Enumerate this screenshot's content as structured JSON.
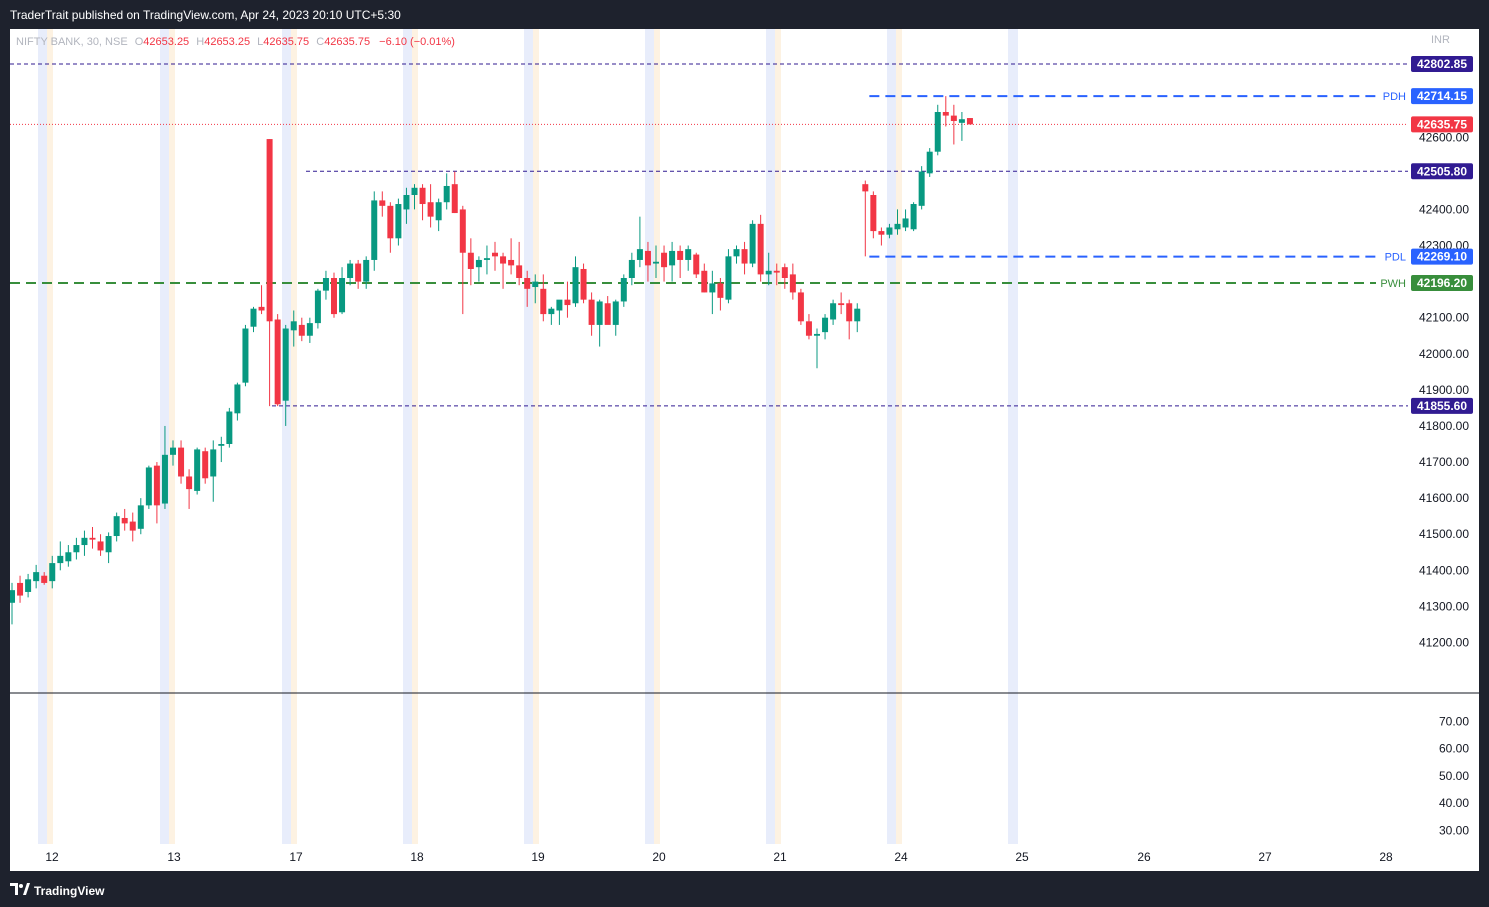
{
  "header": {
    "published_by": "TraderTrait published on TradingView.com, Apr 24, 2023 20:10 UTC+5:30"
  },
  "legend": {
    "symbol": "NIFTY BANK, 30, NSE",
    "o_label": "O",
    "o_value": "42653.25",
    "h_label": "H",
    "h_value": "42653.25",
    "l_label": "L",
    "l_value": "42635.75",
    "c_label": "C",
    "c_value": "42635.75",
    "change": "−6.10 (−0.01%)"
  },
  "footer": {
    "brand": "TradingView"
  },
  "colors": {
    "up": "#089981",
    "down": "#f23645",
    "background": "#ffffff",
    "pdh": "#2962ff",
    "pdl": "#2962ff",
    "pwh": "#388e3c",
    "level_label": "#311b92",
    "last_price": "#f23645",
    "session_blue": "#e8edfb",
    "session_orange": "#fdf2e2"
  },
  "chart_data": {
    "type": "candlestick",
    "currency": "INR",
    "price_axis": {
      "range": [
        41060,
        42900
      ],
      "ticks": [
        "42600.00",
        "42500.00",
        "42400.00",
        "42300.00",
        "42200.00",
        "42100.00",
        "42000.00",
        "41900.00",
        "41800.00",
        "41700.00",
        "41600.00",
        "41500.00",
        "41400.00",
        "41300.00",
        "41200.00"
      ]
    },
    "indicator_axis": {
      "range": [
        25,
        80
      ],
      "ticks": [
        "70.00",
        "60.00",
        "50.00",
        "40.00",
        "30.00"
      ]
    },
    "x_axis": {
      "labels": [
        "12",
        "13",
        "17",
        "18",
        "19",
        "20",
        "21",
        "24",
        "25",
        "26",
        "27",
        "28"
      ]
    },
    "levels": [
      {
        "name": "",
        "value": "42802.85",
        "style": "dashed-thin",
        "color": "#311b92"
      },
      {
        "name": "PDH",
        "value": "42714.15",
        "style": "dashed",
        "color": "#2962ff"
      },
      {
        "name": "",
        "value": "42505.80",
        "style": "dashed-thin",
        "color": "#311b92"
      },
      {
        "name": "PDL",
        "value": "42269.10",
        "style": "dashed",
        "color": "#2962ff"
      },
      {
        "name": "PWH",
        "value": "42196.20",
        "style": "dashed",
        "color": "#388e3c"
      },
      {
        "name": "",
        "value": "41855.60",
        "style": "dashed-thin",
        "color": "#311b92"
      }
    ],
    "last_price": "42635.75",
    "candles": [
      {
        "o": 41310,
        "h": 41365,
        "l": 41250,
        "c": 41345
      },
      {
        "o": 41365,
        "h": 41385,
        "l": 41310,
        "c": 41330
      },
      {
        "o": 41340,
        "h": 41390,
        "l": 41325,
        "c": 41375
      },
      {
        "o": 41370,
        "h": 41415,
        "l": 41350,
        "c": 41395
      },
      {
        "o": 41385,
        "h": 41395,
        "l": 41360,
        "c": 41365
      },
      {
        "o": 41370,
        "h": 41440,
        "l": 41350,
        "c": 41420
      },
      {
        "o": 41420,
        "h": 41480,
        "l": 41400,
        "c": 41440
      },
      {
        "o": 41425,
        "h": 41470,
        "l": 41410,
        "c": 41450
      },
      {
        "o": 41450,
        "h": 41490,
        "l": 41430,
        "c": 41470
      },
      {
        "o": 41470,
        "h": 41510,
        "l": 41440,
        "c": 41490
      },
      {
        "o": 41490,
        "h": 41520,
        "l": 41460,
        "c": 41485
      },
      {
        "o": 41480,
        "h": 41500,
        "l": 41440,
        "c": 41455
      },
      {
        "o": 41450,
        "h": 41505,
        "l": 41420,
        "c": 41495
      },
      {
        "o": 41495,
        "h": 41560,
        "l": 41480,
        "c": 41550
      },
      {
        "o": 41545,
        "h": 41570,
        "l": 41510,
        "c": 41530
      },
      {
        "o": 41535,
        "h": 41560,
        "l": 41480,
        "c": 41510
      },
      {
        "o": 41515,
        "h": 41600,
        "l": 41500,
        "c": 41580
      },
      {
        "o": 41580,
        "h": 41690,
        "l": 41570,
        "c": 41685
      },
      {
        "o": 41690,
        "h": 41700,
        "l": 41530,
        "c": 41580
      },
      {
        "o": 41585,
        "h": 41800,
        "l": 41570,
        "c": 41720
      },
      {
        "o": 41720,
        "h": 41760,
        "l": 41690,
        "c": 41740
      },
      {
        "o": 41740,
        "h": 41760,
        "l": 41640,
        "c": 41660
      },
      {
        "o": 41660,
        "h": 41680,
        "l": 41570,
        "c": 41625
      },
      {
        "o": 41620,
        "h": 41740,
        "l": 41610,
        "c": 41735
      },
      {
        "o": 41730,
        "h": 41740,
        "l": 41640,
        "c": 41655
      },
      {
        "o": 41660,
        "h": 41760,
        "l": 41590,
        "c": 41735
      },
      {
        "o": 41745,
        "h": 41770,
        "l": 41700,
        "c": 41750
      },
      {
        "o": 41750,
        "h": 41850,
        "l": 41740,
        "c": 41840
      },
      {
        "o": 41835,
        "h": 41920,
        "l": 41815,
        "c": 41915
      },
      {
        "o": 41920,
        "h": 42080,
        "l": 41910,
        "c": 42070
      },
      {
        "o": 42075,
        "h": 42130,
        "l": 42060,
        "c": 42125
      },
      {
        "o": 42130,
        "h": 42190,
        "l": 42110,
        "c": 42120
      },
      {
        "o": 42595,
        "h": 42595,
        "l": 41855,
        "c": 42090
      },
      {
        "o": 42095,
        "h": 42110,
        "l": 41855,
        "c": 41860
      },
      {
        "o": 41870,
        "h": 42080,
        "l": 41800,
        "c": 42070
      },
      {
        "o": 42065,
        "h": 42120,
        "l": 42020,
        "c": 42090
      },
      {
        "o": 42080,
        "h": 42100,
        "l": 42035,
        "c": 42050
      },
      {
        "o": 42050,
        "h": 42100,
        "l": 42030,
        "c": 42085
      },
      {
        "o": 42085,
        "h": 42180,
        "l": 42070,
        "c": 42175
      },
      {
        "o": 42175,
        "h": 42230,
        "l": 42150,
        "c": 42210
      },
      {
        "o": 42210,
        "h": 42225,
        "l": 42100,
        "c": 42110
      },
      {
        "o": 42115,
        "h": 42240,
        "l": 42110,
        "c": 42210
      },
      {
        "o": 42210,
        "h": 42260,
        "l": 42190,
        "c": 42250
      },
      {
        "o": 42250,
        "h": 42260,
        "l": 42180,
        "c": 42200
      },
      {
        "o": 42200,
        "h": 42270,
        "l": 42180,
        "c": 42260
      },
      {
        "o": 42260,
        "h": 42450,
        "l": 42230,
        "c": 42425
      },
      {
        "o": 42425,
        "h": 42450,
        "l": 42380,
        "c": 42410
      },
      {
        "o": 42410,
        "h": 42420,
        "l": 42280,
        "c": 42320
      },
      {
        "o": 42320,
        "h": 42430,
        "l": 42300,
        "c": 42415
      },
      {
        "o": 42400,
        "h": 42460,
        "l": 42360,
        "c": 42440
      },
      {
        "o": 42440,
        "h": 42470,
        "l": 42400,
        "c": 42460
      },
      {
        "o": 42460,
        "h": 42470,
        "l": 42370,
        "c": 42415
      },
      {
        "o": 42420,
        "h": 42470,
        "l": 42350,
        "c": 42380
      },
      {
        "o": 42370,
        "h": 42430,
        "l": 42340,
        "c": 42420
      },
      {
        "o": 42420,
        "h": 42500,
        "l": 42400,
        "c": 42465
      },
      {
        "o": 42470,
        "h": 42505,
        "l": 42390,
        "c": 42390
      },
      {
        "o": 42400,
        "h": 42410,
        "l": 42110,
        "c": 42280
      },
      {
        "o": 42280,
        "h": 42320,
        "l": 42190,
        "c": 42235
      },
      {
        "o": 42240,
        "h": 42270,
        "l": 42200,
        "c": 42260
      },
      {
        "o": 42260,
        "h": 42300,
        "l": 42220,
        "c": 42265
      },
      {
        "o": 42280,
        "h": 42310,
        "l": 42230,
        "c": 42270
      },
      {
        "o": 42270,
        "h": 42280,
        "l": 42180,
        "c": 42250
      },
      {
        "o": 42260,
        "h": 42320,
        "l": 42220,
        "c": 42245
      },
      {
        "o": 42245,
        "h": 42310,
        "l": 42190,
        "c": 42210
      },
      {
        "o": 42210,
        "h": 42230,
        "l": 42130,
        "c": 42180
      },
      {
        "o": 42185,
        "h": 42220,
        "l": 42140,
        "c": 42200
      },
      {
        "o": 42180,
        "h": 42220,
        "l": 42090,
        "c": 42110
      },
      {
        "o": 42110,
        "h": 42130,
        "l": 42080,
        "c": 42125
      },
      {
        "o": 42120,
        "h": 42140,
        "l": 42080,
        "c": 42150
      },
      {
        "o": 42150,
        "h": 42200,
        "l": 42100,
        "c": 42135
      },
      {
        "o": 42140,
        "h": 42270,
        "l": 42130,
        "c": 42240
      },
      {
        "o": 42235,
        "h": 42250,
        "l": 42140,
        "c": 42150
      },
      {
        "o": 42150,
        "h": 42170,
        "l": 42050,
        "c": 42080
      },
      {
        "o": 42080,
        "h": 42150,
        "l": 42020,
        "c": 42145
      },
      {
        "o": 42140,
        "h": 42160,
        "l": 42090,
        "c": 42080
      },
      {
        "o": 42080,
        "h": 42150,
        "l": 42050,
        "c": 42145
      },
      {
        "o": 42145,
        "h": 42220,
        "l": 42130,
        "c": 42210
      },
      {
        "o": 42210,
        "h": 42280,
        "l": 42190,
        "c": 42260
      },
      {
        "o": 42260,
        "h": 42380,
        "l": 42240,
        "c": 42290
      },
      {
        "o": 42285,
        "h": 42310,
        "l": 42200,
        "c": 42245
      },
      {
        "o": 42250,
        "h": 42300,
        "l": 42210,
        "c": 42255
      },
      {
        "o": 42280,
        "h": 42300,
        "l": 42200,
        "c": 42240
      },
      {
        "o": 42245,
        "h": 42310,
        "l": 42200,
        "c": 42285
      },
      {
        "o": 42285,
        "h": 42300,
        "l": 42210,
        "c": 42260
      },
      {
        "o": 42260,
        "h": 42300,
        "l": 42230,
        "c": 42290
      },
      {
        "o": 42275,
        "h": 42280,
        "l": 42210,
        "c": 42220
      },
      {
        "o": 42230,
        "h": 42250,
        "l": 42170,
        "c": 42170
      },
      {
        "o": 42170,
        "h": 42230,
        "l": 42110,
        "c": 42195
      },
      {
        "o": 42195,
        "h": 42210,
        "l": 42120,
        "c": 42155
      },
      {
        "o": 42150,
        "h": 42290,
        "l": 42140,
        "c": 42270
      },
      {
        "o": 42270,
        "h": 42300,
        "l": 42250,
        "c": 42290
      },
      {
        "o": 42290,
        "h": 42310,
        "l": 42220,
        "c": 42250
      },
      {
        "o": 42250,
        "h": 42370,
        "l": 42240,
        "c": 42360
      },
      {
        "o": 42360,
        "h": 42385,
        "l": 42200,
        "c": 42220
      },
      {
        "o": 42220,
        "h": 42280,
        "l": 42190,
        "c": 42230
      },
      {
        "o": 42230,
        "h": 42250,
        "l": 42190,
        "c": 42225
      },
      {
        "o": 42240,
        "h": 42250,
        "l": 42180,
        "c": 42210
      },
      {
        "o": 42220,
        "h": 42250,
        "l": 42150,
        "c": 42170
      },
      {
        "o": 42170,
        "h": 42180,
        "l": 42080,
        "c": 42090
      },
      {
        "o": 42090,
        "h": 42110,
        "l": 42040,
        "c": 42050
      },
      {
        "o": 42050,
        "h": 42070,
        "l": 41960,
        "c": 42055
      },
      {
        "o": 42060,
        "h": 42110,
        "l": 42040,
        "c": 42100
      },
      {
        "o": 42095,
        "h": 42150,
        "l": 42080,
        "c": 42140
      },
      {
        "o": 42140,
        "h": 42170,
        "l": 42110,
        "c": 42135
      },
      {
        "o": 42140,
        "h": 42150,
        "l": 42040,
        "c": 42090
      },
      {
        "o": 42090,
        "h": 42140,
        "l": 42060,
        "c": 42125
      },
      {
        "o": 42470,
        "h": 42480,
        "l": 42270,
        "c": 42450
      },
      {
        "o": 42440,
        "h": 42450,
        "l": 42320,
        "c": 42340
      },
      {
        "o": 42340,
        "h": 42350,
        "l": 42300,
        "c": 42330
      },
      {
        "o": 42330,
        "h": 42360,
        "l": 42320,
        "c": 42350
      },
      {
        "o": 42345,
        "h": 42400,
        "l": 42330,
        "c": 42360
      },
      {
        "o": 42350,
        "h": 42400,
        "l": 42340,
        "c": 42375
      },
      {
        "o": 42345,
        "h": 42420,
        "l": 42340,
        "c": 42415
      },
      {
        "o": 42410,
        "h": 42520,
        "l": 42400,
        "c": 42505
      },
      {
        "o": 42500,
        "h": 42570,
        "l": 42490,
        "c": 42560
      },
      {
        "o": 42560,
        "h": 42690,
        "l": 42550,
        "c": 42670
      },
      {
        "o": 42670,
        "h": 42714,
        "l": 42630,
        "c": 42660
      },
      {
        "o": 42660,
        "h": 42690,
        "l": 42580,
        "c": 42645
      },
      {
        "o": 42640,
        "h": 42670,
        "l": 42590,
        "c": 42650
      },
      {
        "o": 42653.25,
        "h": 42653.25,
        "l": 42635.75,
        "c": 42635.75
      }
    ]
  }
}
